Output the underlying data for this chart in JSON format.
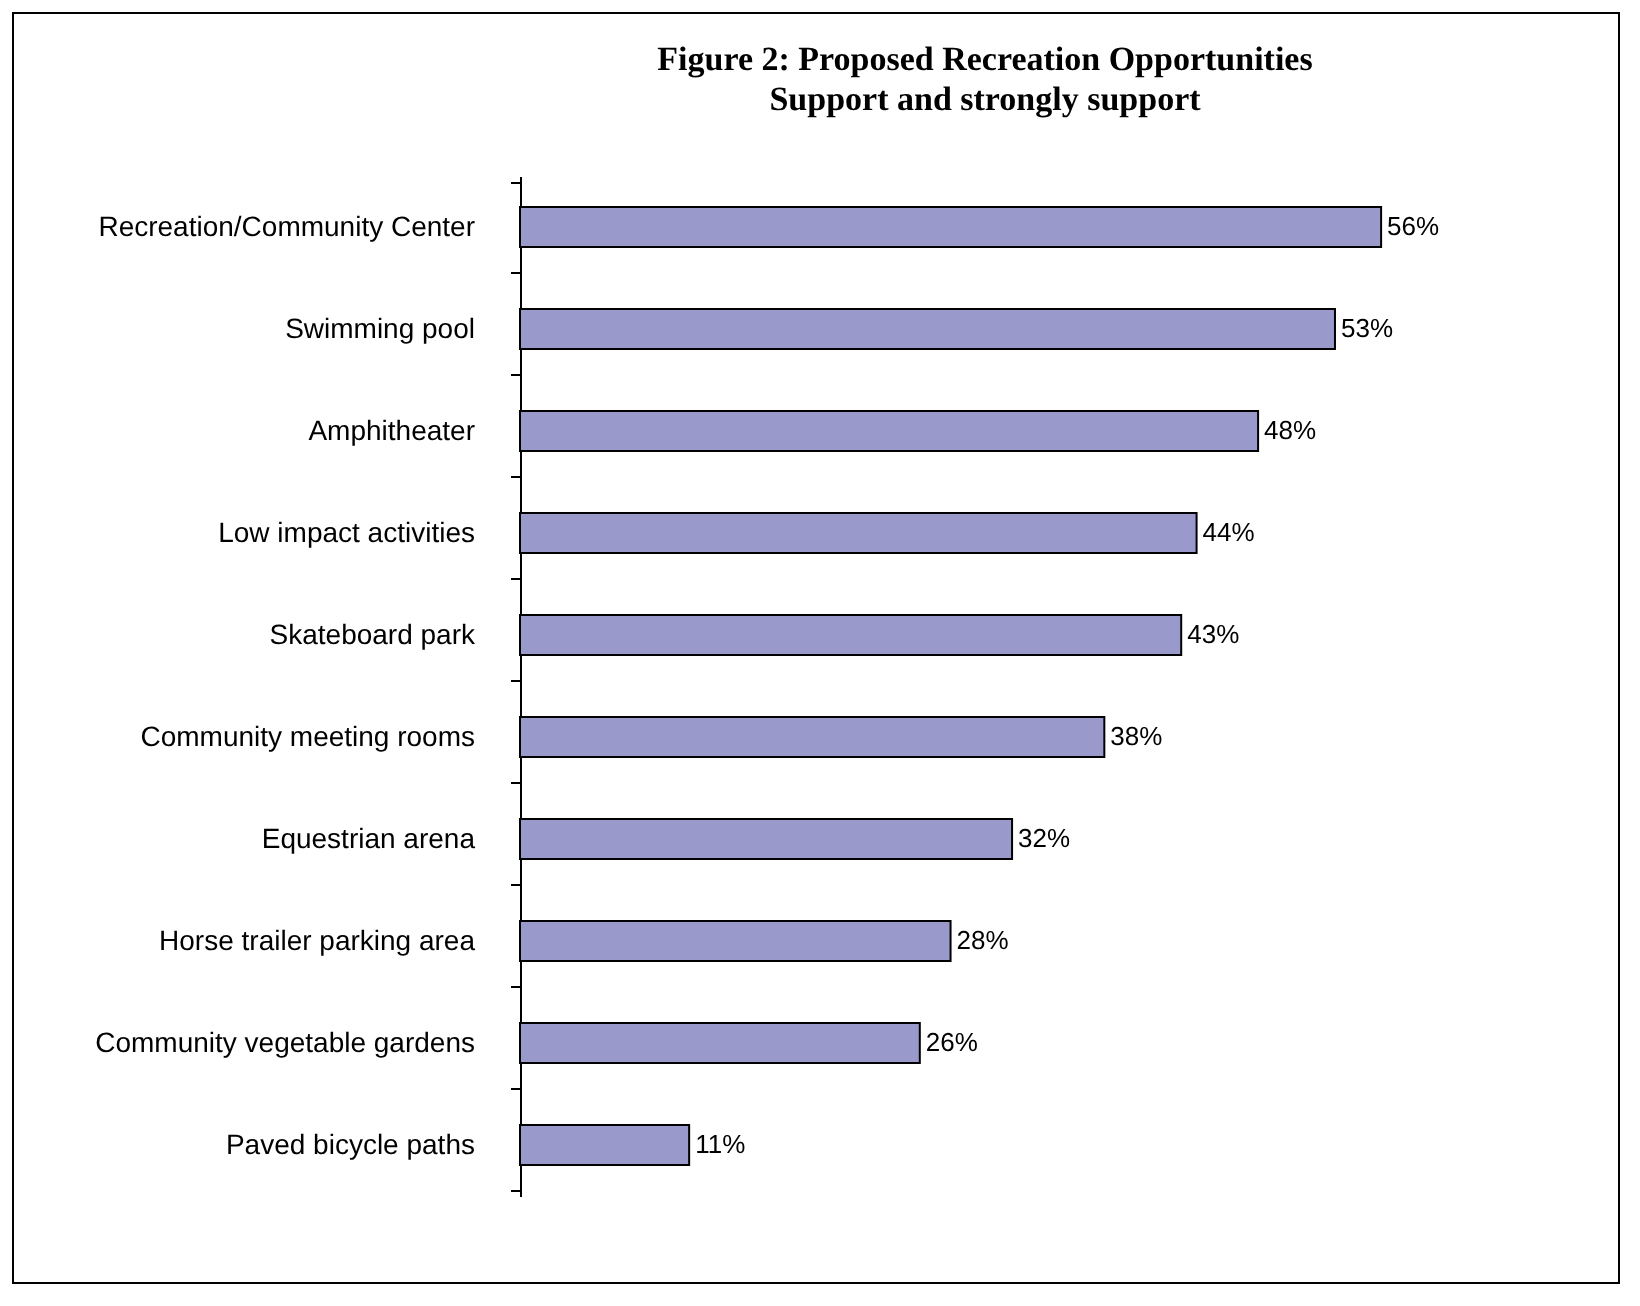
{
  "chart_data": {
    "type": "bar",
    "orientation": "horizontal",
    "title": "Figure 2: Proposed Recreation Opportunities",
    "subtitle": "Support and strongly support",
    "categories": [
      "Recreation/Community Center",
      "Swimming pool",
      "Amphitheater",
      "Low impact activities",
      "Skateboard park",
      "Community meeting rooms",
      "Equestrian arena",
      "Horse trailer parking area",
      "Community vegetable gardens",
      "Paved bicycle paths"
    ],
    "values": [
      56,
      53,
      48,
      44,
      43,
      38,
      32,
      28,
      26,
      11
    ],
    "value_labels": [
      "56%",
      "53%",
      "48%",
      "44%",
      "43%",
      "38%",
      "32%",
      "28%",
      "26%",
      "11%"
    ],
    "color": "#9999cc"
  }
}
